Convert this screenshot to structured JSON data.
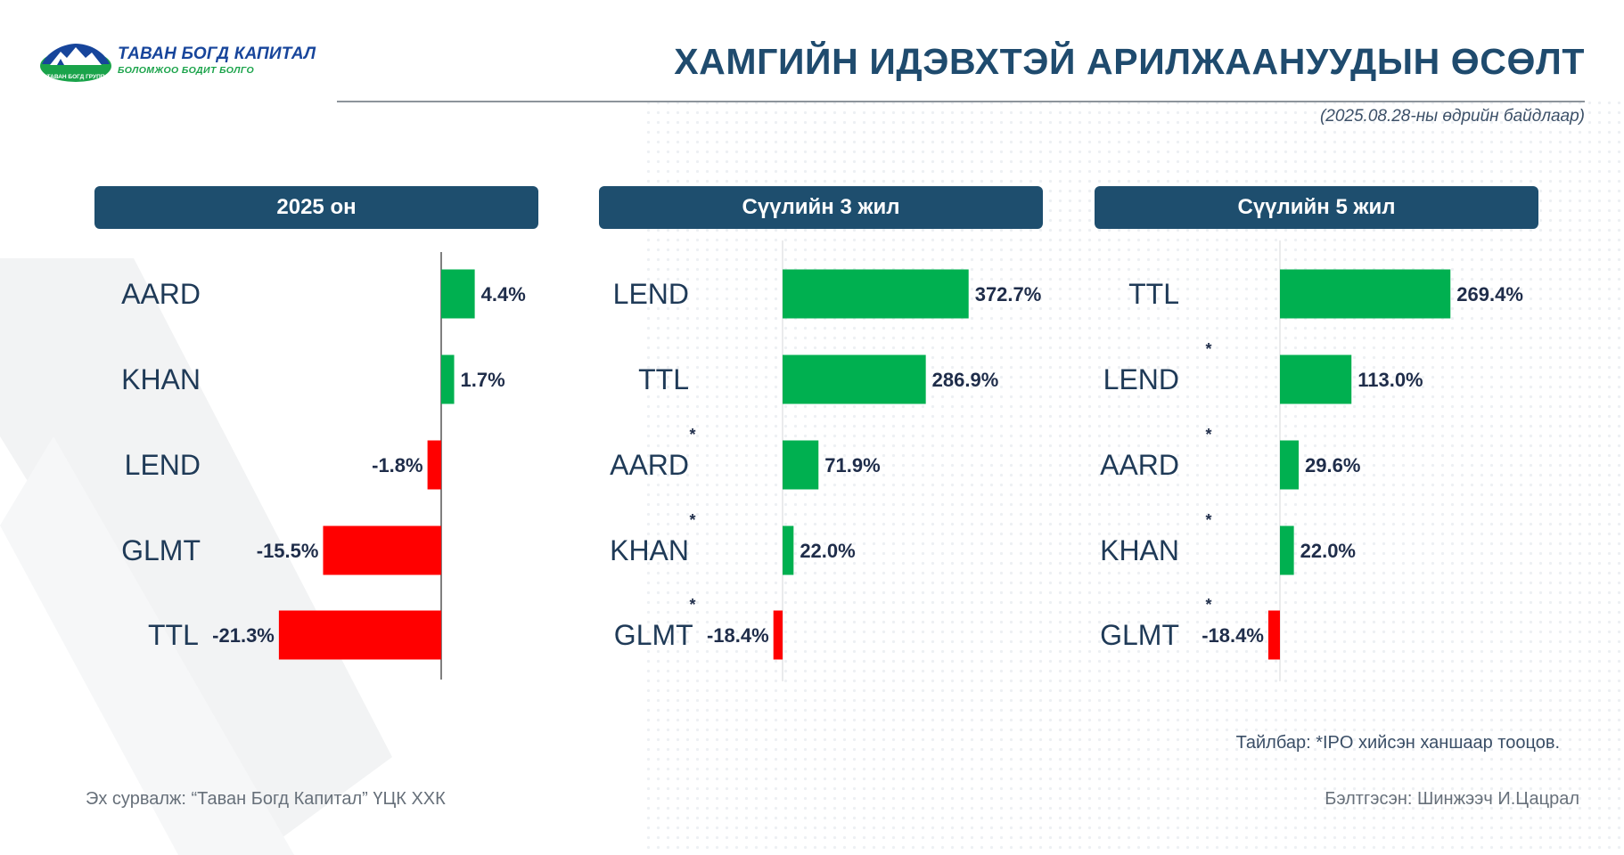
{
  "logo": {
    "name": "ТАВАН БОГД КАПИТАЛ",
    "tagline": "БОЛОМЖОО БОДИТ БОЛГО",
    "badge": "ТАВАН БОГД ГРУПП"
  },
  "title": "ХАМГИЙН ИДЭВХТЭЙ АРИЛЖААНУУДЫН ӨСӨЛТ",
  "date_note": "(2025.08.28-ны өдрийн байдлаар)",
  "colors": {
    "positive": "#00b050",
    "negative": "#ff0000",
    "header_bg": "#1e4e6e",
    "title": "#1f4b6e",
    "label": "#1f3a57"
  },
  "chart_data": [
    {
      "type": "bar",
      "orientation": "horizontal",
      "title": "2025 он",
      "categories": [
        "AARD",
        "KHAN",
        "LEND",
        "GLMT",
        "TTL"
      ],
      "values": [
        4.4,
        1.7,
        -1.8,
        -15.5,
        -21.3
      ],
      "labels": [
        "4.4%",
        "1.7%",
        "-1.8%",
        "-15.5%",
        "-21.3%"
      ],
      "ipo_marked": [
        false,
        false,
        false,
        false,
        false
      ]
    },
    {
      "type": "bar",
      "orientation": "horizontal",
      "title": "Сүүлийн 3 жил",
      "categories": [
        "LEND",
        "TTL",
        "AARD",
        "KHAN",
        "GLMT"
      ],
      "values": [
        372.7,
        286.9,
        71.9,
        22.0,
        -18.4
      ],
      "labels": [
        "372.7%",
        "286.9%",
        "71.9%",
        "22.0%",
        "-18.4%"
      ],
      "ipo_marked": [
        false,
        false,
        true,
        true,
        true
      ]
    },
    {
      "type": "bar",
      "orientation": "horizontal",
      "title": "Сүүлийн 5 жил",
      "categories": [
        "TTL",
        "LEND",
        "AARD",
        "KHAN",
        "GLMT"
      ],
      "values": [
        269.4,
        113.0,
        29.6,
        22.0,
        -18.4
      ],
      "labels": [
        "269.4%",
        "113.0%",
        "29.6%",
        "22.0%",
        "-18.4%"
      ],
      "ipo_marked": [
        false,
        true,
        true,
        true,
        true
      ]
    }
  ],
  "ipo_mark": "*",
  "footnote": "Тайлбар: *IPO хийсэн ханшаар тооцов.",
  "source": "Эх сурвалж: “Таван Богд Капитал” ҮЦК ХХК",
  "prepared_by": "Бэлтгэсэн: Шинжээч И.Цацрал"
}
